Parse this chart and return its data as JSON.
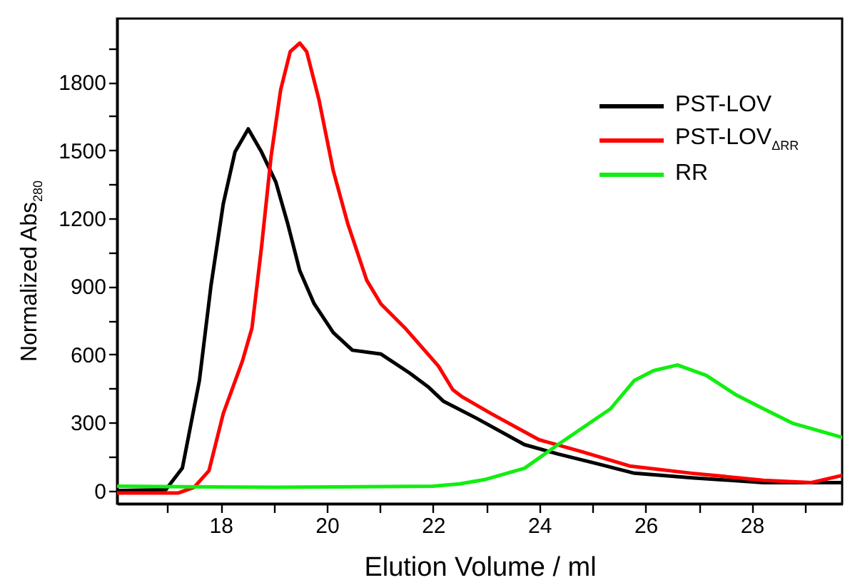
{
  "chart_data": {
    "type": "line",
    "xlabel": "Elution Volume / ml",
    "ylabel": "Normalized Abs$_{280}$",
    "xlim": [
      16.05,
      29.7
    ],
    "ylim": [
      -57,
      2080
    ],
    "xticks": [
      {
        "value": 17,
        "label": null
      },
      18,
      {
        "value": 19,
        "label": null
      },
      20,
      {
        "value": 21,
        "label": null
      },
      22,
      {
        "value": 23,
        "label": null
      },
      24,
      {
        "value": 25,
        "label": null
      },
      26,
      {
        "value": 27,
        "label": null
      },
      28,
      {
        "value": 29,
        "label": null
      }
    ],
    "yticks": [
      0,
      {
        "value": 150,
        "label": null
      },
      300,
      {
        "value": 450,
        "label": null
      },
      600,
      {
        "value": 750,
        "label": null
      },
      900,
      {
        "value": 1050,
        "label": null
      },
      1200,
      {
        "value": 1350,
        "label": null
      },
      1500,
      {
        "value": 1650,
        "label": null
      },
      1800,
      {
        "value": 1950,
        "label": null
      }
    ],
    "grid": false,
    "legend": "top right",
    "marker": "none",
    "line_style": "solid",
    "series": [
      {
        "name": "PST-LOV",
        "color": "#000000",
        "x": [
          16.05,
          16.97,
          17.28,
          17.6,
          17.82,
          18.05,
          18.27,
          18.52,
          18.77,
          19.04,
          19.26,
          19.49,
          19.76,
          20.12,
          20.48,
          21.02,
          21.56,
          21.92,
          22.19,
          22.82,
          23.72,
          24.35,
          25.07,
          25.79,
          26.87,
          28.22,
          29.7
        ],
        "values": [
          0,
          5,
          100,
          485,
          906,
          1264,
          1492,
          1594,
          1492,
          1359,
          1179,
          969,
          824,
          697,
          619,
          602,
          518,
          455,
          395,
          319,
          203,
          162,
          120,
          77,
          57,
          36,
          36
        ]
      },
      {
        "name": "PST-LOV$_{ΔRR}$",
        "color": "#ff0000",
        "x": [
          16.05,
          17.2,
          17.5,
          17.78,
          18.05,
          18.41,
          18.59,
          18.77,
          18.95,
          19.13,
          19.31,
          19.49,
          19.62,
          19.85,
          20.12,
          20.39,
          20.75,
          21.02,
          21.47,
          22.1,
          22.37,
          22.55,
          23.09,
          23.99,
          24.8,
          25.7,
          26.87,
          28.22,
          29.12,
          29.7
        ],
        "values": [
          -10,
          -10,
          15,
          88,
          340,
          571,
          717,
          1074,
          1473,
          1766,
          1934,
          1972,
          1934,
          1724,
          1410,
          1179,
          927,
          822,
          717,
          549,
          445,
          413,
          340,
          225,
          172,
          109,
          77,
          46,
          36,
          67
        ]
      },
      {
        "name": "RR",
        "color": "#11ee11",
        "x": [
          16.05,
          19,
          22,
          22.5,
          22.99,
          23.72,
          24.35,
          25.34,
          25.79,
          26.15,
          26.6,
          27.14,
          27.69,
          28.22,
          28.76,
          29.7
        ],
        "values": [
          20,
          15,
          20,
          30,
          50,
          99,
          203,
          361,
          486,
          529,
          554,
          508,
          424,
          361,
          298,
          235
        ]
      }
    ]
  }
}
